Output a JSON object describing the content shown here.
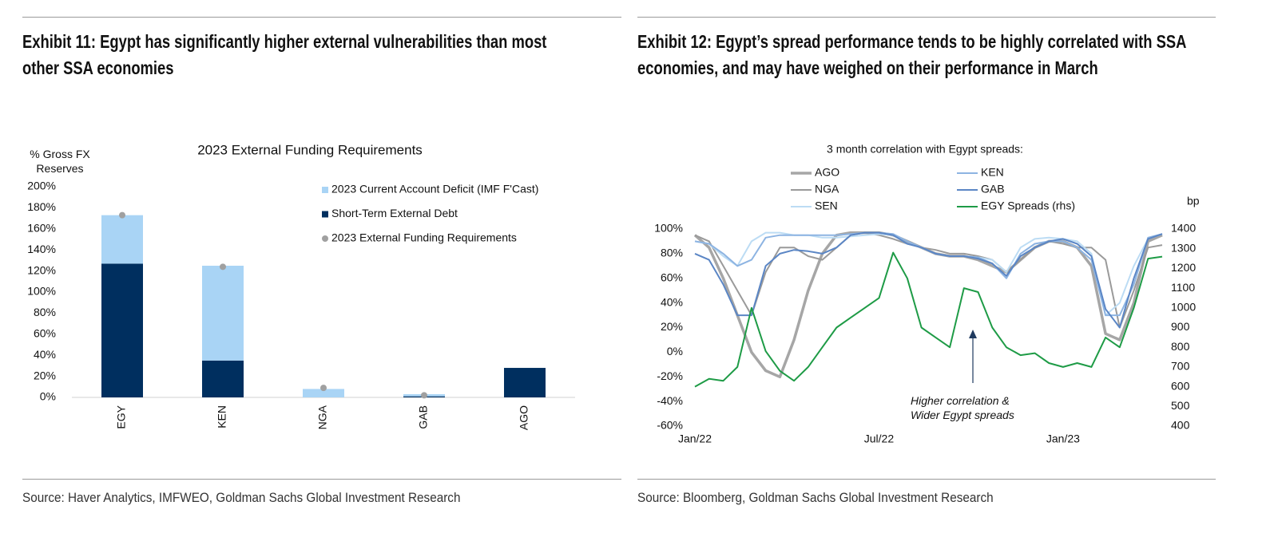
{
  "chart_data": [
    {
      "type": "bar",
      "exhibit": "Exhibit 11: Egypt has significantly higher external vulnerabilities than most other SSA economies",
      "title": "2023 External Funding Requirements",
      "y_label": "% Gross FX Reserves",
      "source": "Source: Haver Analytics, IMFWEO, Goldman Sachs Global Investment Research",
      "categories": [
        "EGY",
        "KEN",
        "NGA",
        "GAB",
        "AGO"
      ],
      "series": [
        {
          "name": "2023 Current Account Deficit (IMF F'Cast)",
          "color": "#a9d4f5",
          "type": "bar",
          "values": [
            46,
            90,
            8,
            2,
            0
          ]
        },
        {
          "name": "Short-Term External Debt",
          "color": "#002f5f",
          "type": "bar",
          "values": [
            127,
            35,
            0,
            1,
            28
          ]
        },
        {
          "name": "2023 External Funding Requirements",
          "color": "#a0a0a0",
          "type": "scatter",
          "values": [
            173,
            124,
            9,
            2,
            null
          ]
        }
      ],
      "ylim": [
        0,
        200
      ],
      "yticks": [
        {
          "value": 0,
          "label": "0%"
        },
        {
          "value": 20,
          "label": "20%"
        },
        {
          "value": 40,
          "label": "40%"
        },
        {
          "value": 60,
          "label": "60%"
        },
        {
          "value": 80,
          "label": "80%"
        },
        {
          "value": 100,
          "label": "100%"
        },
        {
          "value": 120,
          "label": "120%"
        },
        {
          "value": 140,
          "label": "140%"
        },
        {
          "value": 160,
          "label": "160%"
        },
        {
          "value": 180,
          "label": "180%"
        },
        {
          "value": 200,
          "label": "200%"
        }
      ]
    },
    {
      "type": "line",
      "exhibit": "Exhibit 12: Egypt’s spread performance tends to be highly correlated with SSA economies, and may have weighed on their performance in March",
      "title": "3 month correlation with Egypt spreads:",
      "y2_label": "bp",
      "annotation": "Higher correlation & Wider Egypt spreads",
      "source": "Source: Bloomberg, Goldman Sachs Global Investment Research",
      "categories": [
        "Jan/22",
        null,
        null,
        null,
        null,
        null,
        null,
        null,
        null,
        null,
        null,
        null,
        null,
        "Jul/22",
        null,
        null,
        null,
        null,
        null,
        null,
        null,
        null,
        null,
        null,
        null,
        null,
        "Jan/23",
        null,
        null,
        null,
        null,
        null,
        null,
        null
      ],
      "series": [
        {
          "name": "AGO",
          "color": "#a6a6a6",
          "width": 3.5,
          "values": [
            95,
            85,
            60,
            30,
            0,
            -15,
            -20,
            10,
            50,
            80,
            95,
            97,
            97,
            97,
            95,
            90,
            85,
            80,
            78,
            78,
            75,
            70,
            65,
            75,
            85,
            90,
            90,
            85,
            70,
            15,
            10,
            40,
            90,
            95
          ]
        },
        {
          "name": "NGA",
          "color": "#9a9a9a",
          "width": 2,
          "values": [
            95,
            90,
            70,
            50,
            30,
            65,
            85,
            85,
            78,
            75,
            85,
            95,
            97,
            95,
            92,
            88,
            85,
            83,
            80,
            80,
            78,
            75,
            65,
            75,
            85,
            90,
            88,
            85,
            85,
            75,
            20,
            50,
            85,
            87
          ]
        },
        {
          "name": "SEN",
          "color": "#bcdcf4",
          "width": 2,
          "values": [
            90,
            88,
            78,
            70,
            90,
            97,
            97,
            95,
            95,
            93,
            93,
            94,
            95,
            96,
            95,
            88,
            85,
            80,
            78,
            78,
            77,
            75,
            65,
            85,
            92,
            93,
            92,
            90,
            80,
            30,
            40,
            70,
            92,
            96
          ]
        },
        {
          "name": "KEN",
          "color": "#8db4e2",
          "width": 2,
          "values": [
            90,
            88,
            80,
            70,
            75,
            93,
            95,
            95,
            95,
            95,
            95,
            96,
            97,
            97,
            96,
            90,
            85,
            80,
            78,
            78,
            77,
            72,
            60,
            80,
            88,
            90,
            90,
            85,
            75,
            30,
            30,
            55,
            93,
            96
          ]
        },
        {
          "name": "GAB",
          "color": "#5b86c5",
          "width": 2,
          "values": [
            80,
            75,
            55,
            30,
            30,
            70,
            80,
            83,
            82,
            80,
            85,
            95,
            97,
            97,
            95,
            88,
            85,
            80,
            78,
            78,
            76,
            72,
            62,
            78,
            85,
            90,
            92,
            88,
            78,
            35,
            20,
            60,
            92,
            96
          ]
        },
        {
          "name": "EGY Spreads (rhs)",
          "color": "#1e9b46",
          "width": 2,
          "axis": "y2",
          "values": [
            600,
            640,
            630,
            700,
            1000,
            780,
            680,
            630,
            700,
            800,
            900,
            950,
            1000,
            1050,
            1280,
            1150,
            900,
            850,
            800,
            1100,
            1080,
            900,
            800,
            760,
            770,
            720,
            700,
            720,
            700,
            850,
            800,
            1000,
            1250,
            1260
          ]
        }
      ],
      "ylim": [
        -60,
        100
      ],
      "yticks": [
        {
          "value": -60,
          "label": "-60%"
        },
        {
          "value": -40,
          "label": "-40%"
        },
        {
          "value": -20,
          "label": "-20%"
        },
        {
          "value": 0,
          "label": "0%"
        },
        {
          "value": 20,
          "label": "20%"
        },
        {
          "value": 40,
          "label": "40%"
        },
        {
          "value": 60,
          "label": "60%"
        },
        {
          "value": 80,
          "label": "80%"
        },
        {
          "value": 100,
          "label": "100%"
        }
      ],
      "y2lim": [
        400,
        1400
      ],
      "y2ticks": [
        400,
        500,
        600,
        700,
        800,
        900,
        1000,
        1100,
        1200,
        1300,
        1400
      ]
    }
  ]
}
